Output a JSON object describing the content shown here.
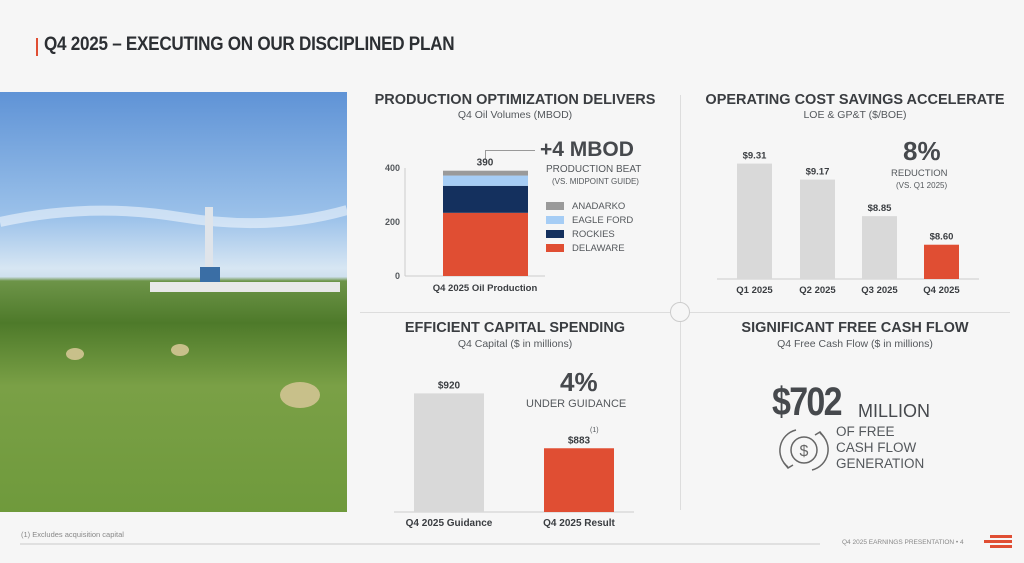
{
  "header": {
    "title": "Q4 2025 – EXECUTING ON OUR DISCIPLINED PLAN"
  },
  "production": {
    "title": "PRODUCTION OPTIMIZATION DELIVERS",
    "subtitle": "Q4 Oil Volumes (MBOD)",
    "headline": "+4 MBOD",
    "headline_sub1": "PRODUCTION BEAT",
    "headline_sub2": "(VS. MIDPOINT GUIDE)"
  },
  "cost": {
    "title": "OPERATING COST SAVINGS ACCELERATE",
    "subtitle": "LOE & GP&T ($/BOE)",
    "headline": "8%",
    "headline_sub1": "REDUCTION",
    "headline_sub2": "(VS. Q1 2025)"
  },
  "capital": {
    "title": "EFFICIENT CAPITAL SPENDING",
    "subtitle": "Q4 Capital ($ in millions)",
    "headline": "4%",
    "headline_sub1": "UNDER GUIDANCE",
    "footnote_marker": "(1)"
  },
  "fcf": {
    "title": "SIGNIFICANT FREE CASH FLOW",
    "subtitle": "Q4 Free Cash Flow ($ in millions)",
    "amount": "$702",
    "unit": "MILLION",
    "line1": "OF FREE",
    "line2": "CASH FLOW",
    "line3": "GENERATION"
  },
  "footer": {
    "footnote": "(1) Excludes acquisition capital",
    "presentation": "Q4 2025 EARNINGS PRESENTATION",
    "page": "4"
  },
  "colors": {
    "accent": "#e04e33",
    "navy": "#14305e",
    "light_blue": "#a6cdf5",
    "gray": "#9a9a9a",
    "bar_gray": "#d9d9d9"
  },
  "chart_data": [
    {
      "type": "bar",
      "stacked": true,
      "title": "Q4 Oil Volumes (MBOD)",
      "categories": [
        "Q4 2025 Oil Production"
      ],
      "yticks": [
        "0",
        "200",
        "400"
      ],
      "ylim": [
        0,
        400
      ],
      "total_label": "390",
      "series": [
        {
          "name": "DELAWARE",
          "values": [
            234
          ],
          "color": "#e04e33"
        },
        {
          "name": "ROCKIES",
          "values": [
            100
          ],
          "color": "#14305e"
        },
        {
          "name": "EAGLE FORD",
          "values": [
            38
          ],
          "color": "#a6cdf5"
        },
        {
          "name": "ANADARKO",
          "values": [
            18
          ],
          "color": "#9a9a9a"
        }
      ],
      "legend_order": [
        "ANADARKO",
        "EAGLE FORD",
        "ROCKIES",
        "DELAWARE"
      ],
      "legend": "right"
    },
    {
      "type": "bar",
      "title": "LOE & GP&T ($/BOE)",
      "categories": [
        "Q1 2025",
        "Q2 2025",
        "Q3 2025",
        "Q4 2025"
      ],
      "values": [
        9.31,
        9.17,
        8.85,
        8.6
      ],
      "labels": [
        "$9.31",
        "$9.17",
        "$8.85",
        "$8.60"
      ],
      "ylim": [
        8.3,
        9.35
      ],
      "highlight": 3
    },
    {
      "type": "bar",
      "title": "Q4 Capital ($ in millions)",
      "categories": [
        "Q4 2025 Guidance",
        "Q4 2025 Result"
      ],
      "values": [
        920,
        883
      ],
      "labels": [
        "$920",
        "$883"
      ],
      "ylim": [
        840,
        925
      ],
      "highlight": 1
    }
  ]
}
